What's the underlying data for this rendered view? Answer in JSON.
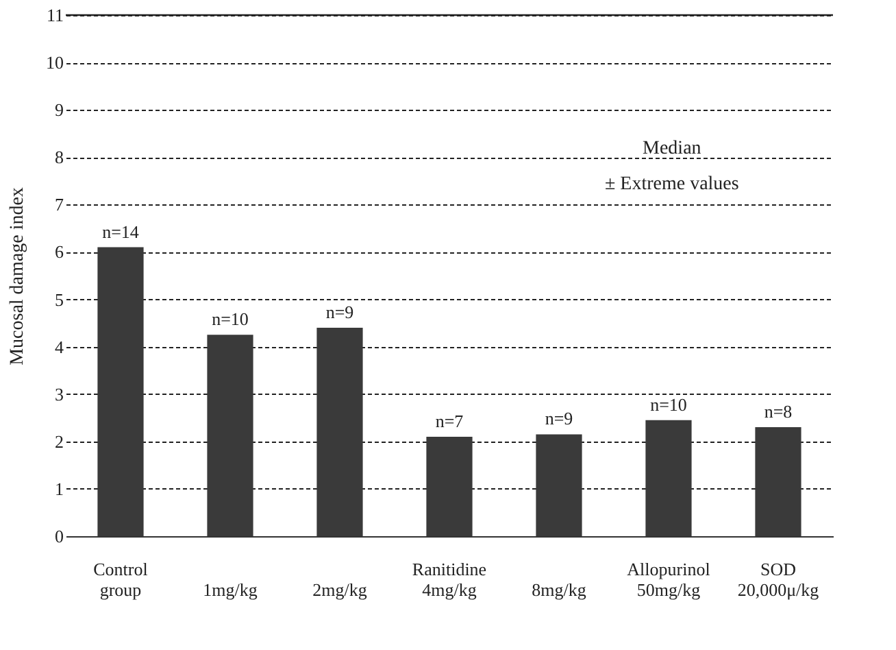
{
  "chart_data": {
    "type": "bar",
    "ylabel": "Mucosal damage index",
    "categories": [
      "Control group",
      "1mg/kg",
      "2mg/kg",
      "Ranitidine 4mg/kg",
      "8mg/kg",
      "Allopurinol 50mg/kg",
      "SOD 20,000μ/kg"
    ],
    "values": [
      6.1,
      4.25,
      4.4,
      2.1,
      2.15,
      2.45,
      2.3
    ],
    "color": "#3a3a3a",
    "ylim": [
      0,
      11
    ],
    "yticks": [
      0,
      1,
      2,
      3,
      4,
      5,
      6,
      7,
      8,
      9,
      10,
      11
    ],
    "grid": "y",
    "annotations": [
      {
        "text": "n=14",
        "x": "Control group",
        "y": 6.1
      },
      {
        "text": "n=10",
        "x": "1mg/kg",
        "y": 4.25
      },
      {
        "text": "n=9",
        "x": "2mg/kg",
        "y": 4.4
      },
      {
        "text": "n=7",
        "x": "Ranitidine 4mg/kg",
        "y": 2.1
      },
      {
        "text": "n=9",
        "x": "8mg/kg",
        "y": 2.15
      },
      {
        "text": "n=10",
        "x": "Allopurinol 50mg/kg",
        "y": 2.45
      },
      {
        "text": "n=8",
        "x": "SOD 20,000μ/kg",
        "y": 2.3
      },
      "Median",
      "± Extreme values"
    ]
  }
}
